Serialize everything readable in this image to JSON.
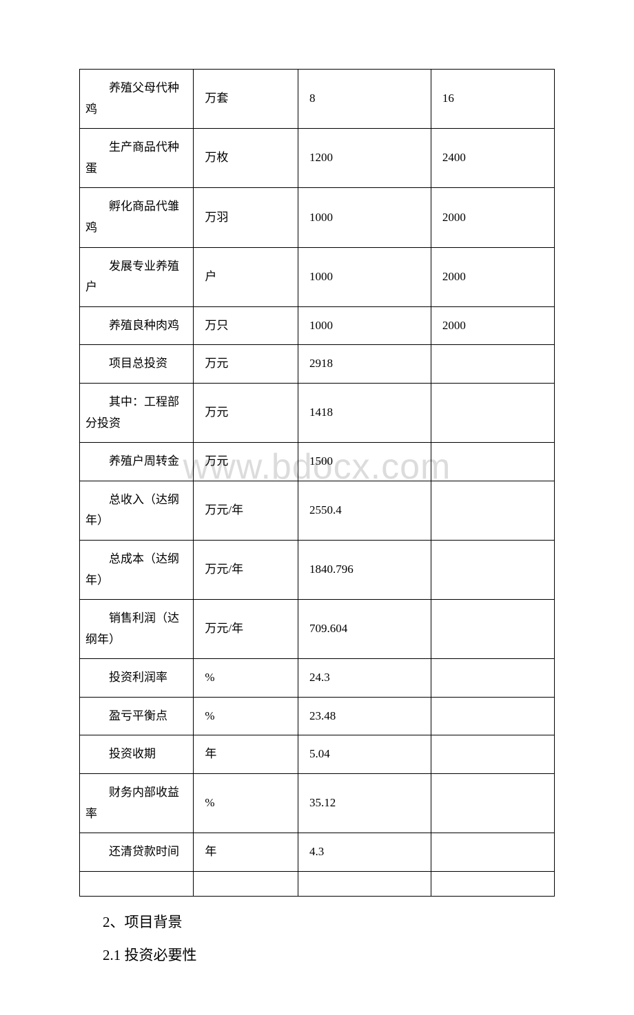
{
  "watermark": "www.bdocx.com",
  "table": {
    "rows": [
      {
        "label": "养殖父母代种鸡",
        "unit": "万套",
        "value1": "8",
        "value2": "16"
      },
      {
        "label": "生产商品代种蛋",
        "unit": "万枚",
        "value1": "1200",
        "value2": "2400"
      },
      {
        "label": "孵化商品代雏鸡",
        "unit": "万羽",
        "value1": "1000",
        "value2": "2000"
      },
      {
        "label": "发展专业养殖户",
        "unit": "户",
        "value1": "1000",
        "value2": "2000"
      },
      {
        "label": "养殖良种肉鸡",
        "unit": "万只",
        "value1": "1000",
        "value2": "2000"
      },
      {
        "label": "项目总投资",
        "unit": "万元",
        "value1": "2918",
        "value2": ""
      },
      {
        "label": "其中：工程部分投资",
        "unit": "万元",
        "value1": "1418",
        "value2": ""
      },
      {
        "label": "养殖户周转金",
        "unit": "万元",
        "value1": "1500",
        "value2": ""
      },
      {
        "label": "总收入（达纲年）",
        "unit": "万元/年",
        "value1": "2550.4",
        "value2": ""
      },
      {
        "label": "总成本（达纲年）",
        "unit": "万元/年",
        "value1": "1840.796",
        "value2": ""
      },
      {
        "label": "销售利润（达纲年）",
        "unit": "万元/年",
        "value1": "709.604",
        "value2": ""
      },
      {
        "label": "投资利润率",
        "unit": "%",
        "value1": "24.3",
        "value2": ""
      },
      {
        "label": "盈亏平衡点",
        "unit": "%",
        "value1": "23.48",
        "value2": ""
      },
      {
        "label": "投资收期",
        "unit": "年",
        "value1": "5.04",
        "value2": ""
      },
      {
        "label": "财务内部收益率",
        "unit": "%",
        "value1": "35.12",
        "value2": ""
      },
      {
        "label": "还清贷款时间",
        "unit": "年",
        "value1": "4.3",
        "value2": ""
      }
    ]
  },
  "paragraphs": {
    "p1": "2、项目背景",
    "p2": "2.1 投资必要性"
  },
  "style": {
    "border_color": "#000000",
    "background_color": "#ffffff",
    "watermark_color": "#dcdcdc",
    "text_color": "#000000",
    "table_fontsize": 17,
    "paragraph_fontsize": 21
  }
}
